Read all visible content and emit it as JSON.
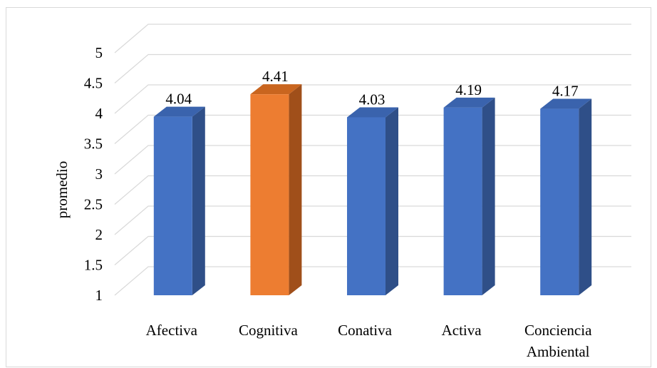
{
  "chart_data": {
    "type": "bar",
    "categories": [
      "Afectiva",
      "Cognitiva",
      "Conativa",
      "Activa",
      "Conciencia Ambiental"
    ],
    "category_lines": [
      [
        "Afectiva"
      ],
      [
        "Cognitiva"
      ],
      [
        "Conativa"
      ],
      [
        "Activa"
      ],
      [
        "Conciencia",
        "Ambiental"
      ]
    ],
    "values": [
      4.04,
      4.41,
      4.03,
      4.19,
      4.17
    ],
    "value_labels": [
      "4.04",
      "4.41",
      "4.03",
      "4.19",
      "4.17"
    ],
    "title": "",
    "xlabel": "",
    "ylabel": "promedio",
    "ylim": [
      1,
      5
    ],
    "yticks": [
      "1",
      "1.5",
      "2",
      "2.5",
      "3",
      "3.5",
      "4",
      "4.5",
      "5"
    ],
    "ytick_values": [
      1,
      1.5,
      2,
      2.5,
      3,
      3.5,
      4,
      4.5,
      5
    ],
    "grid": true,
    "legend": "none",
    "three_d": true,
    "colors": [
      "#4472c4",
      "#ed7d31",
      "#4472c4",
      "#4472c4",
      "#4472c4"
    ],
    "side_colors": [
      "#2f4f88",
      "#a04f1a",
      "#2f4f88",
      "#2f4f88",
      "#2f4f88"
    ],
    "top_colors": [
      "#3a63ad",
      "#c9651f",
      "#3a63ad",
      "#3a63ad",
      "#3a63ad"
    ]
  }
}
